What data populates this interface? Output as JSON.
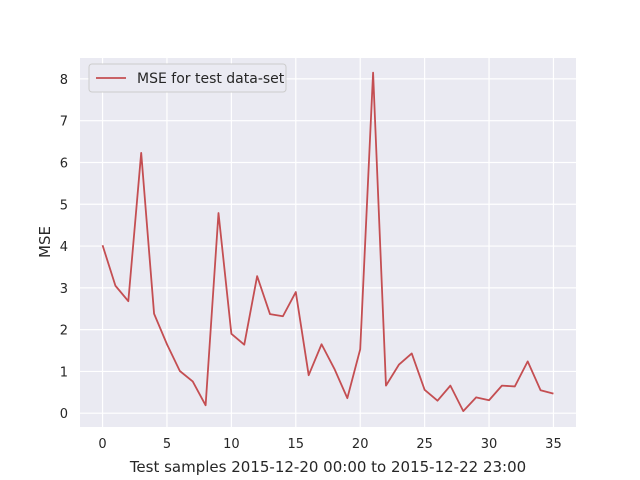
{
  "chart_data": {
    "type": "line",
    "title": "",
    "xlabel": "Test samples 2015-12-20 00:00 to 2015-12-22 23:00",
    "ylabel": "MSE",
    "xlim": [
      -1.75,
      36.75
    ],
    "ylim": [
      -0.33,
      8.5
    ],
    "xticks": [
      0,
      5,
      10,
      15,
      20,
      25,
      30,
      35
    ],
    "yticks": [
      0,
      1,
      2,
      3,
      4,
      5,
      6,
      7,
      8
    ],
    "grid": true,
    "legend": "upper left",
    "series": [
      {
        "name": "MSE for test data-set",
        "color": "#c44e52",
        "x": [
          0,
          1,
          2,
          3,
          4,
          5,
          6,
          7,
          8,
          9,
          10,
          11,
          12,
          13,
          14,
          15,
          16,
          17,
          18,
          19,
          20,
          21,
          22,
          23,
          24,
          25,
          26,
          27,
          28,
          29,
          30,
          31,
          32,
          33,
          34,
          35
        ],
        "y": [
          4.02,
          3.05,
          2.68,
          6.23,
          2.38,
          1.65,
          1.01,
          0.76,
          0.19,
          4.79,
          1.9,
          1.64,
          3.28,
          2.37,
          2.32,
          2.9,
          0.91,
          1.65,
          1.06,
          0.36,
          1.53,
          8.15,
          0.66,
          1.16,
          1.43,
          0.56,
          0.3,
          0.66,
          0.05,
          0.38,
          0.31,
          0.66,
          0.64,
          1.24,
          0.55,
          0.47
        ]
      }
    ]
  }
}
